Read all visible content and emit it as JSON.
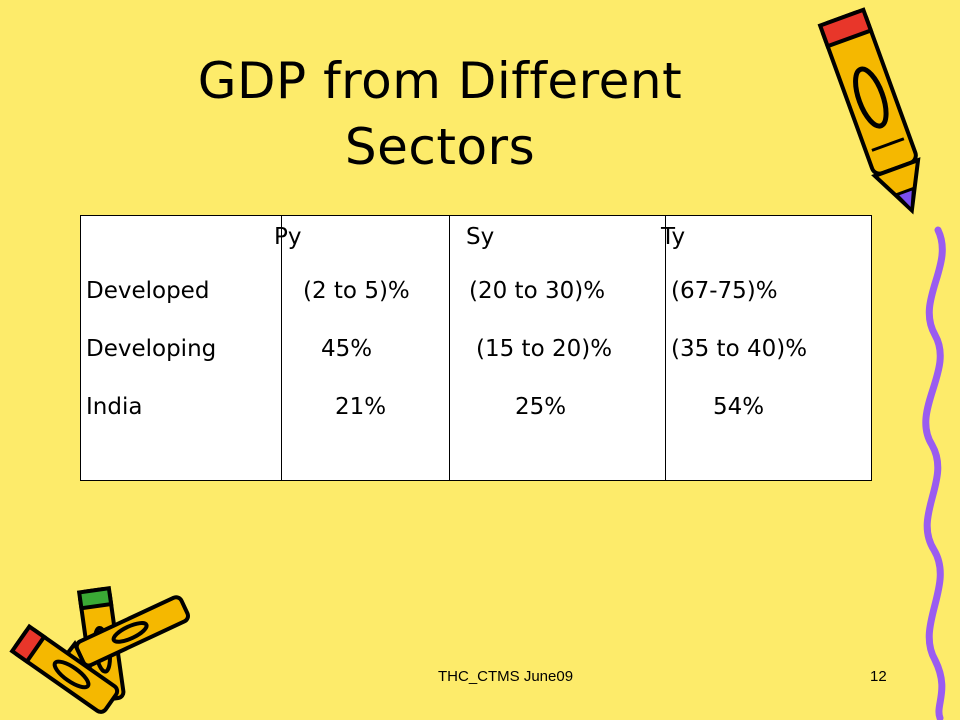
{
  "slide": {
    "title": "GDP from Different Sectors",
    "footer": "THC_CTMS June09",
    "page_number": "12",
    "background_color": "#fdeb6a"
  },
  "table": {
    "headers": [
      "Py",
      "Sy",
      "Ty"
    ],
    "rows": [
      {
        "label": "Developed",
        "values": [
          "(2 to 5)%",
          "(20 to 30)%",
          "(67-75)%"
        ]
      },
      {
        "label": "Developing",
        "values": [
          "45%",
          "(15 to 20)%",
          "(35 to 40)%"
        ]
      },
      {
        "label": "India",
        "values": [
          "21%",
          "25%",
          "54%"
        ]
      }
    ]
  },
  "decorations": {
    "crayon_icons": [
      "crayon-top-right-icon",
      "crayon-cluster-bottom-left-icon"
    ],
    "squiggle": "purple-squiggle-line-icon",
    "accent_colors": {
      "crayon_yellow": "#f5b800",
      "crayon_red": "#e8362a",
      "crayon_green": "#3aa935",
      "squiggle_purple": "#9a5cf0"
    }
  }
}
